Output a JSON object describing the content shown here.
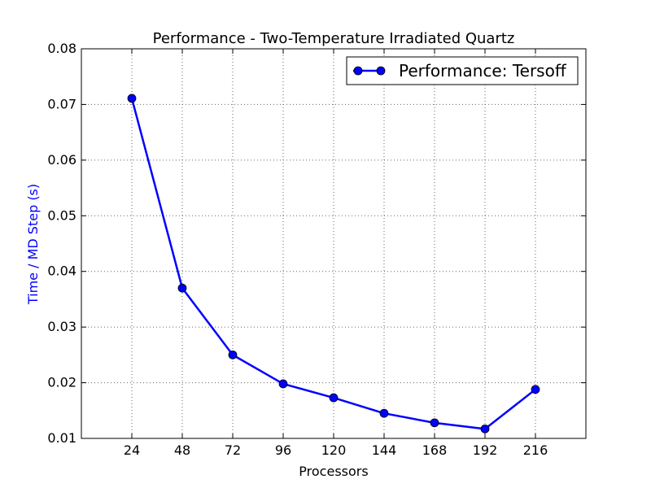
{
  "chart_data": {
    "type": "line",
    "title": "Performance - Two-Temperature Irradiated Quartz",
    "xlabel": "Processors",
    "ylabel": "Time / MD Step (s)",
    "x": [
      24,
      48,
      72,
      96,
      120,
      144,
      168,
      192,
      216
    ],
    "xticks": [
      "24",
      "48",
      "72",
      "96",
      "120",
      "144",
      "168",
      "192",
      "216"
    ],
    "xlim": [
      0,
      240
    ],
    "ylim": [
      0.01,
      0.08
    ],
    "yticks": [
      "0.01",
      "0.02",
      "0.03",
      "0.04",
      "0.05",
      "0.06",
      "0.07",
      "0.08"
    ],
    "grid": true,
    "legend_position": "top-right",
    "series": [
      {
        "name": "Performance: Tersoff",
        "color": "#0000ff",
        "marker": "circle",
        "values": [
          0.0711,
          0.037,
          0.025,
          0.0198,
          0.0173,
          0.0145,
          0.0128,
          0.0117,
          0.0188
        ]
      }
    ]
  },
  "colors": {
    "axis": "#000000",
    "grid": "#666666",
    "ylabel": "#0000ff",
    "xlabel": "#000000"
  }
}
